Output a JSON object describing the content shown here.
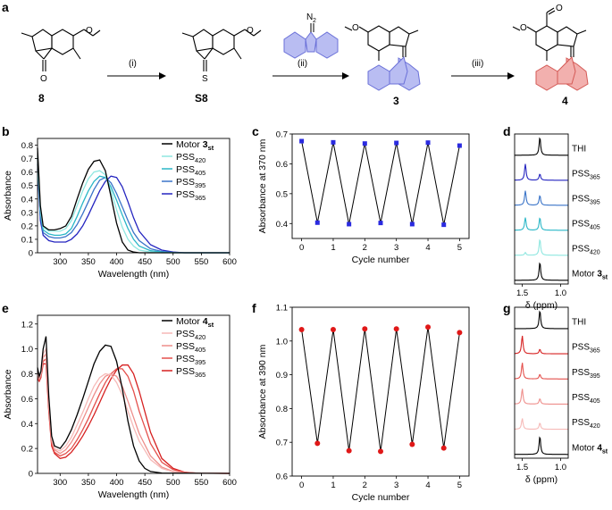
{
  "panel_letters": {
    "a": "a",
    "b": "b",
    "c": "c",
    "d": "d",
    "e": "e",
    "f": "f",
    "g": "g"
  },
  "scheme": {
    "compounds": [
      {
        "label": "8"
      },
      {
        "label": "S8"
      },
      {
        "label": "3"
      },
      {
        "label": "4"
      }
    ],
    "reagent_label": "N",
    "reagent_subscript": "2",
    "o_label": "O",
    "s_label": "S",
    "steps": [
      "(i)",
      "(ii)",
      "(iii)"
    ],
    "colors": {
      "fluorenyl": "#b9bdf2",
      "fluorenyl_edge": "#6a70d8",
      "red_fluorenyl": "#f2b0ae",
      "red_edge": "#d45a56"
    }
  },
  "chart_data": [
    {
      "id": "b",
      "type": "line",
      "xlabel": "Wavelength (nm)",
      "ylabel": "Absorbance",
      "xlim": [
        260,
        600
      ],
      "ylim": [
        0,
        0.85
      ],
      "xticks": [
        "300",
        "350",
        "400",
        "450",
        "500",
        "550",
        "600"
      ],
      "yticks": [
        "0",
        "0.1",
        "0.2",
        "0.3",
        "0.4",
        "0.5",
        "0.6",
        "0.7",
        "0.8"
      ],
      "legend": [
        {
          "main": "Motor ",
          "bold": "3",
          "sub": "st",
          "color": "#000000"
        },
        {
          "main": "PSS",
          "bold": "",
          "sub": "420",
          "color": "#8fe7e0"
        },
        {
          "main": "PSS",
          "bold": "",
          "sub": "405",
          "color": "#2ab7c7"
        },
        {
          "main": "PSS",
          "bold": "",
          "sub": "395",
          "color": "#3a74c8"
        },
        {
          "main": "PSS",
          "bold": "",
          "sub": "365",
          "color": "#2525c0"
        }
      ],
      "series": [
        {
          "name": "Motor 3st",
          "color": "#000000",
          "x": [
            260,
            265,
            270,
            280,
            290,
            300,
            310,
            320,
            330,
            340,
            350,
            360,
            370,
            380,
            390,
            400,
            410,
            420,
            430,
            440,
            460,
            500,
            600
          ],
          "y": [
            0.78,
            0.35,
            0.2,
            0.17,
            0.17,
            0.18,
            0.2,
            0.27,
            0.4,
            0.52,
            0.62,
            0.68,
            0.69,
            0.61,
            0.42,
            0.22,
            0.08,
            0.02,
            0.005,
            0,
            0,
            0,
            0
          ]
        },
        {
          "name": "PSS420",
          "color": "#8fe7e0",
          "x": [
            260,
            265,
            270,
            280,
            290,
            300,
            310,
            320,
            330,
            340,
            350,
            360,
            370,
            380,
            390,
            400,
            410,
            420,
            430,
            440,
            460,
            480,
            500,
            600
          ],
          "y": [
            0.72,
            0.32,
            0.19,
            0.16,
            0.16,
            0.16,
            0.18,
            0.24,
            0.35,
            0.46,
            0.55,
            0.6,
            0.61,
            0.58,
            0.46,
            0.32,
            0.19,
            0.1,
            0.05,
            0.02,
            0.005,
            0,
            0,
            0
          ]
        },
        {
          "name": "PSS405",
          "color": "#2ab7c7",
          "x": [
            260,
            265,
            270,
            280,
            290,
            300,
            310,
            320,
            330,
            340,
            350,
            360,
            370,
            380,
            390,
            400,
            410,
            420,
            430,
            440,
            460,
            480,
            500,
            600
          ],
          "y": [
            0.7,
            0.3,
            0.17,
            0.14,
            0.13,
            0.13,
            0.14,
            0.18,
            0.27,
            0.37,
            0.46,
            0.53,
            0.57,
            0.56,
            0.49,
            0.39,
            0.28,
            0.18,
            0.1,
            0.05,
            0.015,
            0.005,
            0,
            0
          ]
        },
        {
          "name": "PSS395",
          "color": "#3a74c8",
          "x": [
            260,
            265,
            270,
            280,
            290,
            300,
            310,
            320,
            330,
            340,
            350,
            360,
            370,
            380,
            390,
            400,
            410,
            420,
            430,
            440,
            460,
            480,
            500,
            520,
            600
          ],
          "y": [
            0.66,
            0.27,
            0.15,
            0.12,
            0.11,
            0.11,
            0.12,
            0.15,
            0.21,
            0.29,
            0.38,
            0.47,
            0.54,
            0.56,
            0.52,
            0.44,
            0.34,
            0.24,
            0.15,
            0.09,
            0.03,
            0.01,
            0.003,
            0,
            0
          ]
        },
        {
          "name": "PSS365",
          "color": "#2525c0",
          "x": [
            260,
            265,
            270,
            280,
            290,
            300,
            310,
            320,
            330,
            340,
            350,
            360,
            370,
            380,
            390,
            400,
            410,
            420,
            430,
            440,
            460,
            480,
            500,
            520,
            600
          ],
          "y": [
            0.62,
            0.24,
            0.13,
            0.09,
            0.08,
            0.08,
            0.08,
            0.1,
            0.14,
            0.2,
            0.28,
            0.37,
            0.46,
            0.53,
            0.57,
            0.56,
            0.49,
            0.38,
            0.26,
            0.16,
            0.06,
            0.02,
            0.005,
            0,
            0
          ]
        }
      ]
    },
    {
      "id": "c",
      "type": "line",
      "xlabel": "Cycle number",
      "ylabel": "Absorbance at 370 nm",
      "xlim": [
        -0.3,
        5.3
      ],
      "ylim": [
        0.35,
        0.7
      ],
      "xticks": [
        "0",
        "1",
        "2",
        "3",
        "4",
        "5"
      ],
      "yticks": [
        "0.4",
        "0.5",
        "0.6",
        "0.7"
      ],
      "marker": "square",
      "marker_color": "#2a2ae0",
      "x": [
        0,
        0.5,
        1,
        1.5,
        2,
        2.5,
        3,
        3.5,
        4,
        4.5,
        5
      ],
      "y": [
        0.676,
        0.403,
        0.672,
        0.398,
        0.668,
        0.402,
        0.67,
        0.398,
        0.671,
        0.396,
        0.661
      ]
    },
    {
      "id": "d",
      "type": "line",
      "xlabel": "δ (ppm)",
      "xlim": [
        1.6,
        0.9
      ],
      "xticks": [
        "1.5",
        "1.0"
      ],
      "traces": [
        {
          "label": "THI",
          "sub": "",
          "color": "#000000",
          "peaks": [
            [
              1.27,
              1.0
            ]
          ]
        },
        {
          "label": "PSS",
          "sub": "365",
          "color": "#2525c0",
          "peaks": [
            [
              1.46,
              0.9
            ],
            [
              1.27,
              0.35
            ]
          ]
        },
        {
          "label": "PSS",
          "sub": "395",
          "color": "#3a74c8",
          "peaks": [
            [
              1.46,
              0.8
            ],
            [
              1.27,
              0.55
            ]
          ]
        },
        {
          "label": "PSS",
          "sub": "405",
          "color": "#2ab7c7",
          "peaks": [
            [
              1.46,
              0.7
            ],
            [
              1.27,
              0.7
            ]
          ]
        },
        {
          "label": "PSS",
          "sub": "420",
          "color": "#8fe7e0",
          "peaks": [
            [
              1.46,
              0.15
            ],
            [
              1.27,
              0.9
            ]
          ]
        },
        {
          "label": "Motor ",
          "bold": "3",
          "sub": "st",
          "color": "#000000",
          "peaks": [
            [
              1.27,
              1.0
            ]
          ]
        }
      ]
    },
    {
      "id": "e",
      "type": "line",
      "xlabel": "Wavelength (nm)",
      "ylabel": "Absorbance",
      "xlim": [
        260,
        600
      ],
      "ylim": [
        0,
        1.27
      ],
      "xticks": [
        "300",
        "350",
        "400",
        "450",
        "500",
        "550",
        "600"
      ],
      "yticks": [
        "0",
        "0.2",
        "0.4",
        "0.6",
        "0.8",
        "1.0",
        "1.2"
      ],
      "legend": [
        {
          "main": "Motor ",
          "bold": "4",
          "sub": "st",
          "color": "#000000"
        },
        {
          "main": "PSS",
          "bold": "",
          "sub": "420",
          "color": "#f6b9b7"
        },
        {
          "main": "PSS",
          "bold": "",
          "sub": "405",
          "color": "#ee8e8b"
        },
        {
          "main": "PSS",
          "bold": "",
          "sub": "395",
          "color": "#e4504c"
        },
        {
          "main": "PSS",
          "bold": "",
          "sub": "365",
          "color": "#d62020"
        }
      ],
      "series": [
        {
          "name": "Motor 4st",
          "color": "#000000",
          "x": [
            260,
            263,
            266,
            270,
            275,
            280,
            285,
            290,
            300,
            310,
            320,
            330,
            340,
            350,
            360,
            370,
            380,
            390,
            400,
            410,
            420,
            430,
            440,
            450,
            460,
            480,
            600
          ],
          "y": [
            0.85,
            0.78,
            0.82,
            1.0,
            1.1,
            0.62,
            0.3,
            0.22,
            0.2,
            0.26,
            0.35,
            0.47,
            0.6,
            0.74,
            0.88,
            0.98,
            1.03,
            1.02,
            0.9,
            0.68,
            0.42,
            0.22,
            0.1,
            0.04,
            0.015,
            0.003,
            0
          ]
        },
        {
          "name": "PSS420",
          "color": "#f6b9b7",
          "x": [
            260,
            263,
            266,
            270,
            275,
            280,
            285,
            290,
            300,
            310,
            320,
            330,
            340,
            350,
            360,
            370,
            380,
            390,
            400,
            410,
            420,
            430,
            440,
            460,
            480,
            500,
            520,
            600
          ],
          "y": [
            0.82,
            0.77,
            0.8,
            0.96,
            1.0,
            0.58,
            0.28,
            0.2,
            0.18,
            0.22,
            0.29,
            0.39,
            0.49,
            0.6,
            0.7,
            0.77,
            0.8,
            0.79,
            0.73,
            0.63,
            0.5,
            0.37,
            0.26,
            0.11,
            0.04,
            0.012,
            0.003,
            0
          ]
        },
        {
          "name": "PSS405",
          "color": "#ee8e8b",
          "x": [
            260,
            263,
            266,
            270,
            275,
            280,
            285,
            290,
            300,
            310,
            320,
            330,
            340,
            350,
            360,
            370,
            380,
            390,
            400,
            410,
            420,
            430,
            440,
            460,
            480,
            500,
            520,
            600
          ],
          "y": [
            0.8,
            0.76,
            0.79,
            0.93,
            0.96,
            0.55,
            0.26,
            0.19,
            0.16,
            0.19,
            0.25,
            0.33,
            0.43,
            0.53,
            0.63,
            0.72,
            0.78,
            0.8,
            0.78,
            0.7,
            0.58,
            0.45,
            0.32,
            0.14,
            0.05,
            0.015,
            0.004,
            0
          ]
        },
        {
          "name": "PSS395",
          "color": "#e4504c",
          "x": [
            260,
            263,
            266,
            270,
            275,
            280,
            285,
            290,
            300,
            310,
            320,
            330,
            340,
            350,
            360,
            370,
            380,
            390,
            400,
            410,
            420,
            430,
            440,
            460,
            480,
            500,
            520,
            540,
            600
          ],
          "y": [
            0.78,
            0.75,
            0.78,
            0.9,
            0.92,
            0.52,
            0.24,
            0.17,
            0.14,
            0.16,
            0.2,
            0.27,
            0.35,
            0.44,
            0.54,
            0.64,
            0.73,
            0.8,
            0.84,
            0.84,
            0.78,
            0.66,
            0.5,
            0.24,
            0.09,
            0.03,
            0.008,
            0.002,
            0
          ]
        },
        {
          "name": "PSS365",
          "color": "#d62020",
          "x": [
            260,
            263,
            266,
            270,
            275,
            280,
            285,
            290,
            300,
            310,
            320,
            330,
            340,
            350,
            360,
            370,
            380,
            390,
            400,
            410,
            420,
            430,
            440,
            460,
            480,
            500,
            520,
            540,
            600
          ],
          "y": [
            0.76,
            0.74,
            0.77,
            0.88,
            0.88,
            0.5,
            0.22,
            0.16,
            0.12,
            0.13,
            0.17,
            0.23,
            0.3,
            0.38,
            0.47,
            0.57,
            0.67,
            0.76,
            0.83,
            0.87,
            0.87,
            0.8,
            0.66,
            0.33,
            0.12,
            0.04,
            0.01,
            0.003,
            0
          ]
        }
      ]
    },
    {
      "id": "f",
      "type": "line",
      "xlabel": "Cycle number",
      "ylabel": "Absorbance at 390 nm",
      "xlim": [
        -0.3,
        5.3
      ],
      "ylim": [
        0.6,
        1.1
      ],
      "xticks": [
        "0",
        "1",
        "2",
        "3",
        "4",
        "5"
      ],
      "yticks": [
        "0.6",
        "0.7",
        "0.8",
        "0.9",
        "1.0",
        "1.1"
      ],
      "marker": "circle",
      "marker_color": "#e01818",
      "x": [
        0,
        0.5,
        1,
        1.5,
        2,
        2.5,
        3,
        3.5,
        4,
        4.5,
        5
      ],
      "y": [
        1.034,
        0.697,
        1.034,
        0.675,
        1.036,
        0.673,
        1.036,
        0.694,
        1.041,
        0.683,
        1.025
      ]
    },
    {
      "id": "g",
      "type": "line",
      "xlabel": "δ (ppm)",
      "xlim": [
        1.6,
        0.9
      ],
      "xticks": [
        "1.5",
        "1.0"
      ],
      "traces": [
        {
          "label": "THI",
          "sub": "",
          "color": "#000000",
          "peaks": [
            [
              1.27,
              1.0
            ]
          ]
        },
        {
          "label": "PSS",
          "sub": "365",
          "color": "#d62020",
          "peaks": [
            [
              1.5,
              1.0
            ],
            [
              1.27,
              0.25
            ]
          ]
        },
        {
          "label": "PSS",
          "sub": "395",
          "color": "#e4504c",
          "peaks": [
            [
              1.5,
              0.9
            ],
            [
              1.27,
              0.25
            ]
          ]
        },
        {
          "label": "PSS",
          "sub": "405",
          "color": "#ee8e8b",
          "peaks": [
            [
              1.5,
              0.85
            ],
            [
              1.27,
              0.3
            ]
          ]
        },
        {
          "label": "PSS",
          "sub": "420",
          "color": "#f6b9b7",
          "peaks": [
            [
              1.5,
              0.6
            ],
            [
              1.27,
              0.35
            ]
          ]
        },
        {
          "label": "Motor ",
          "bold": "4",
          "sub": "st",
          "color": "#000000",
          "peaks": [
            [
              1.27,
              1.0
            ]
          ]
        }
      ]
    }
  ]
}
